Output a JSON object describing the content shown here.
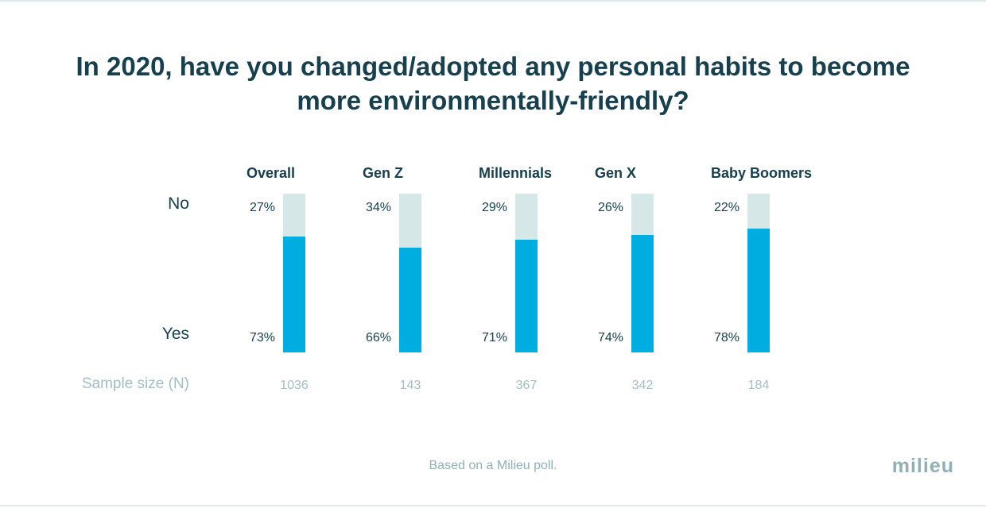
{
  "title": "In 2020, have you changed/adopted any personal habits to become more environmentally-friendly?",
  "row_labels": {
    "no": "No",
    "yes": "Yes"
  },
  "sample_size_label": "Sample size (N)",
  "footnote": "Based on a Milieu poll.",
  "logo": "milieu",
  "colors": {
    "yes": "#00ade0",
    "no": "#d6e7e8",
    "text": "#17404e",
    "muted": "#a3bec3"
  },
  "chart_data": {
    "type": "bar",
    "stacked": true,
    "categories": [
      "Overall",
      "Gen Z",
      "Millennials",
      "Gen X",
      "Baby Boomers"
    ],
    "series": [
      {
        "name": "No",
        "values": [
          27,
          34,
          29,
          26,
          22
        ],
        "labels": [
          "27%",
          "34%",
          "29%",
          "26%",
          "22%"
        ]
      },
      {
        "name": "Yes",
        "values": [
          73,
          66,
          71,
          74,
          78
        ],
        "labels": [
          "73%",
          "66%",
          "71%",
          "74%",
          "78%"
        ]
      }
    ],
    "sample_sizes": [
      "1036",
      "143",
      "367",
      "342",
      "184"
    ],
    "ylim": [
      0,
      100
    ]
  }
}
